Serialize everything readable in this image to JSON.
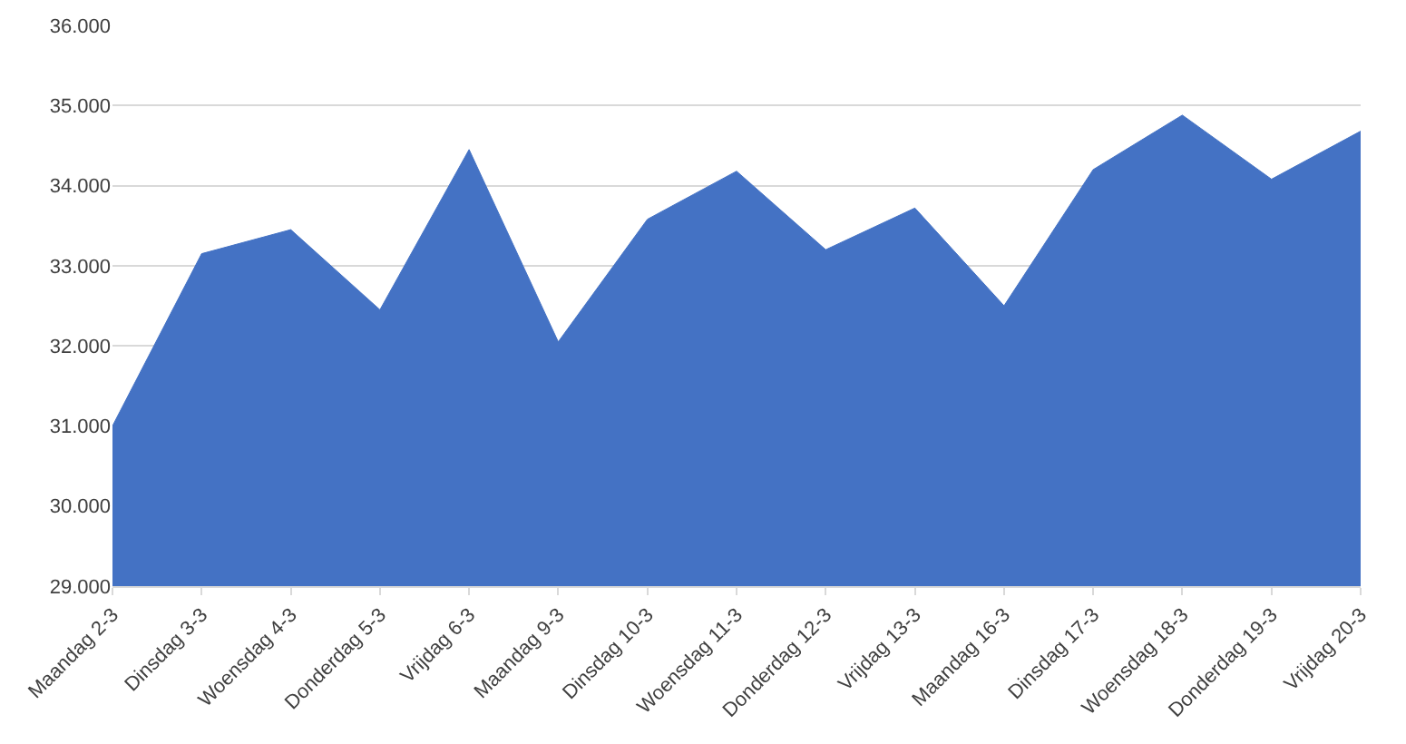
{
  "chart_data": {
    "type": "area",
    "categories": [
      "Maandag 2-3",
      "Dinsdag 3-3",
      "Woensdag 4-3",
      "Donderdag 5-3",
      "Vrijdag 6-3",
      "Maandag 9-3",
      "Dinsdag 10-3",
      "Woensdag 11-3",
      "Donderdag 12-3",
      "Vrijdag 13-3",
      "Maandag 16-3",
      "Dinsdag 17-3",
      "Woensdag 18-3",
      "Donderdag 19-3",
      "Vrijdag 20-3"
    ],
    "values": [
      31000,
      33150,
      33450,
      32450,
      34450,
      32050,
      33580,
      34180,
      33200,
      33720,
      32500,
      34200,
      34880,
      34080,
      34680
    ],
    "color": "#4472c4",
    "ylim": [
      29000,
      36000
    ],
    "yticks": [
      {
        "value": 29000,
        "label": "29.000"
      },
      {
        "value": 30000,
        "label": "30.000"
      },
      {
        "value": 31000,
        "label": "31.000"
      },
      {
        "value": 32000,
        "label": "32.000"
      },
      {
        "value": 33000,
        "label": "33.000"
      },
      {
        "value": 34000,
        "label": "34.000"
      },
      {
        "value": 35000,
        "label": "35.000"
      },
      {
        "value": 36000,
        "label": "36.000"
      }
    ],
    "grid": "y"
  }
}
